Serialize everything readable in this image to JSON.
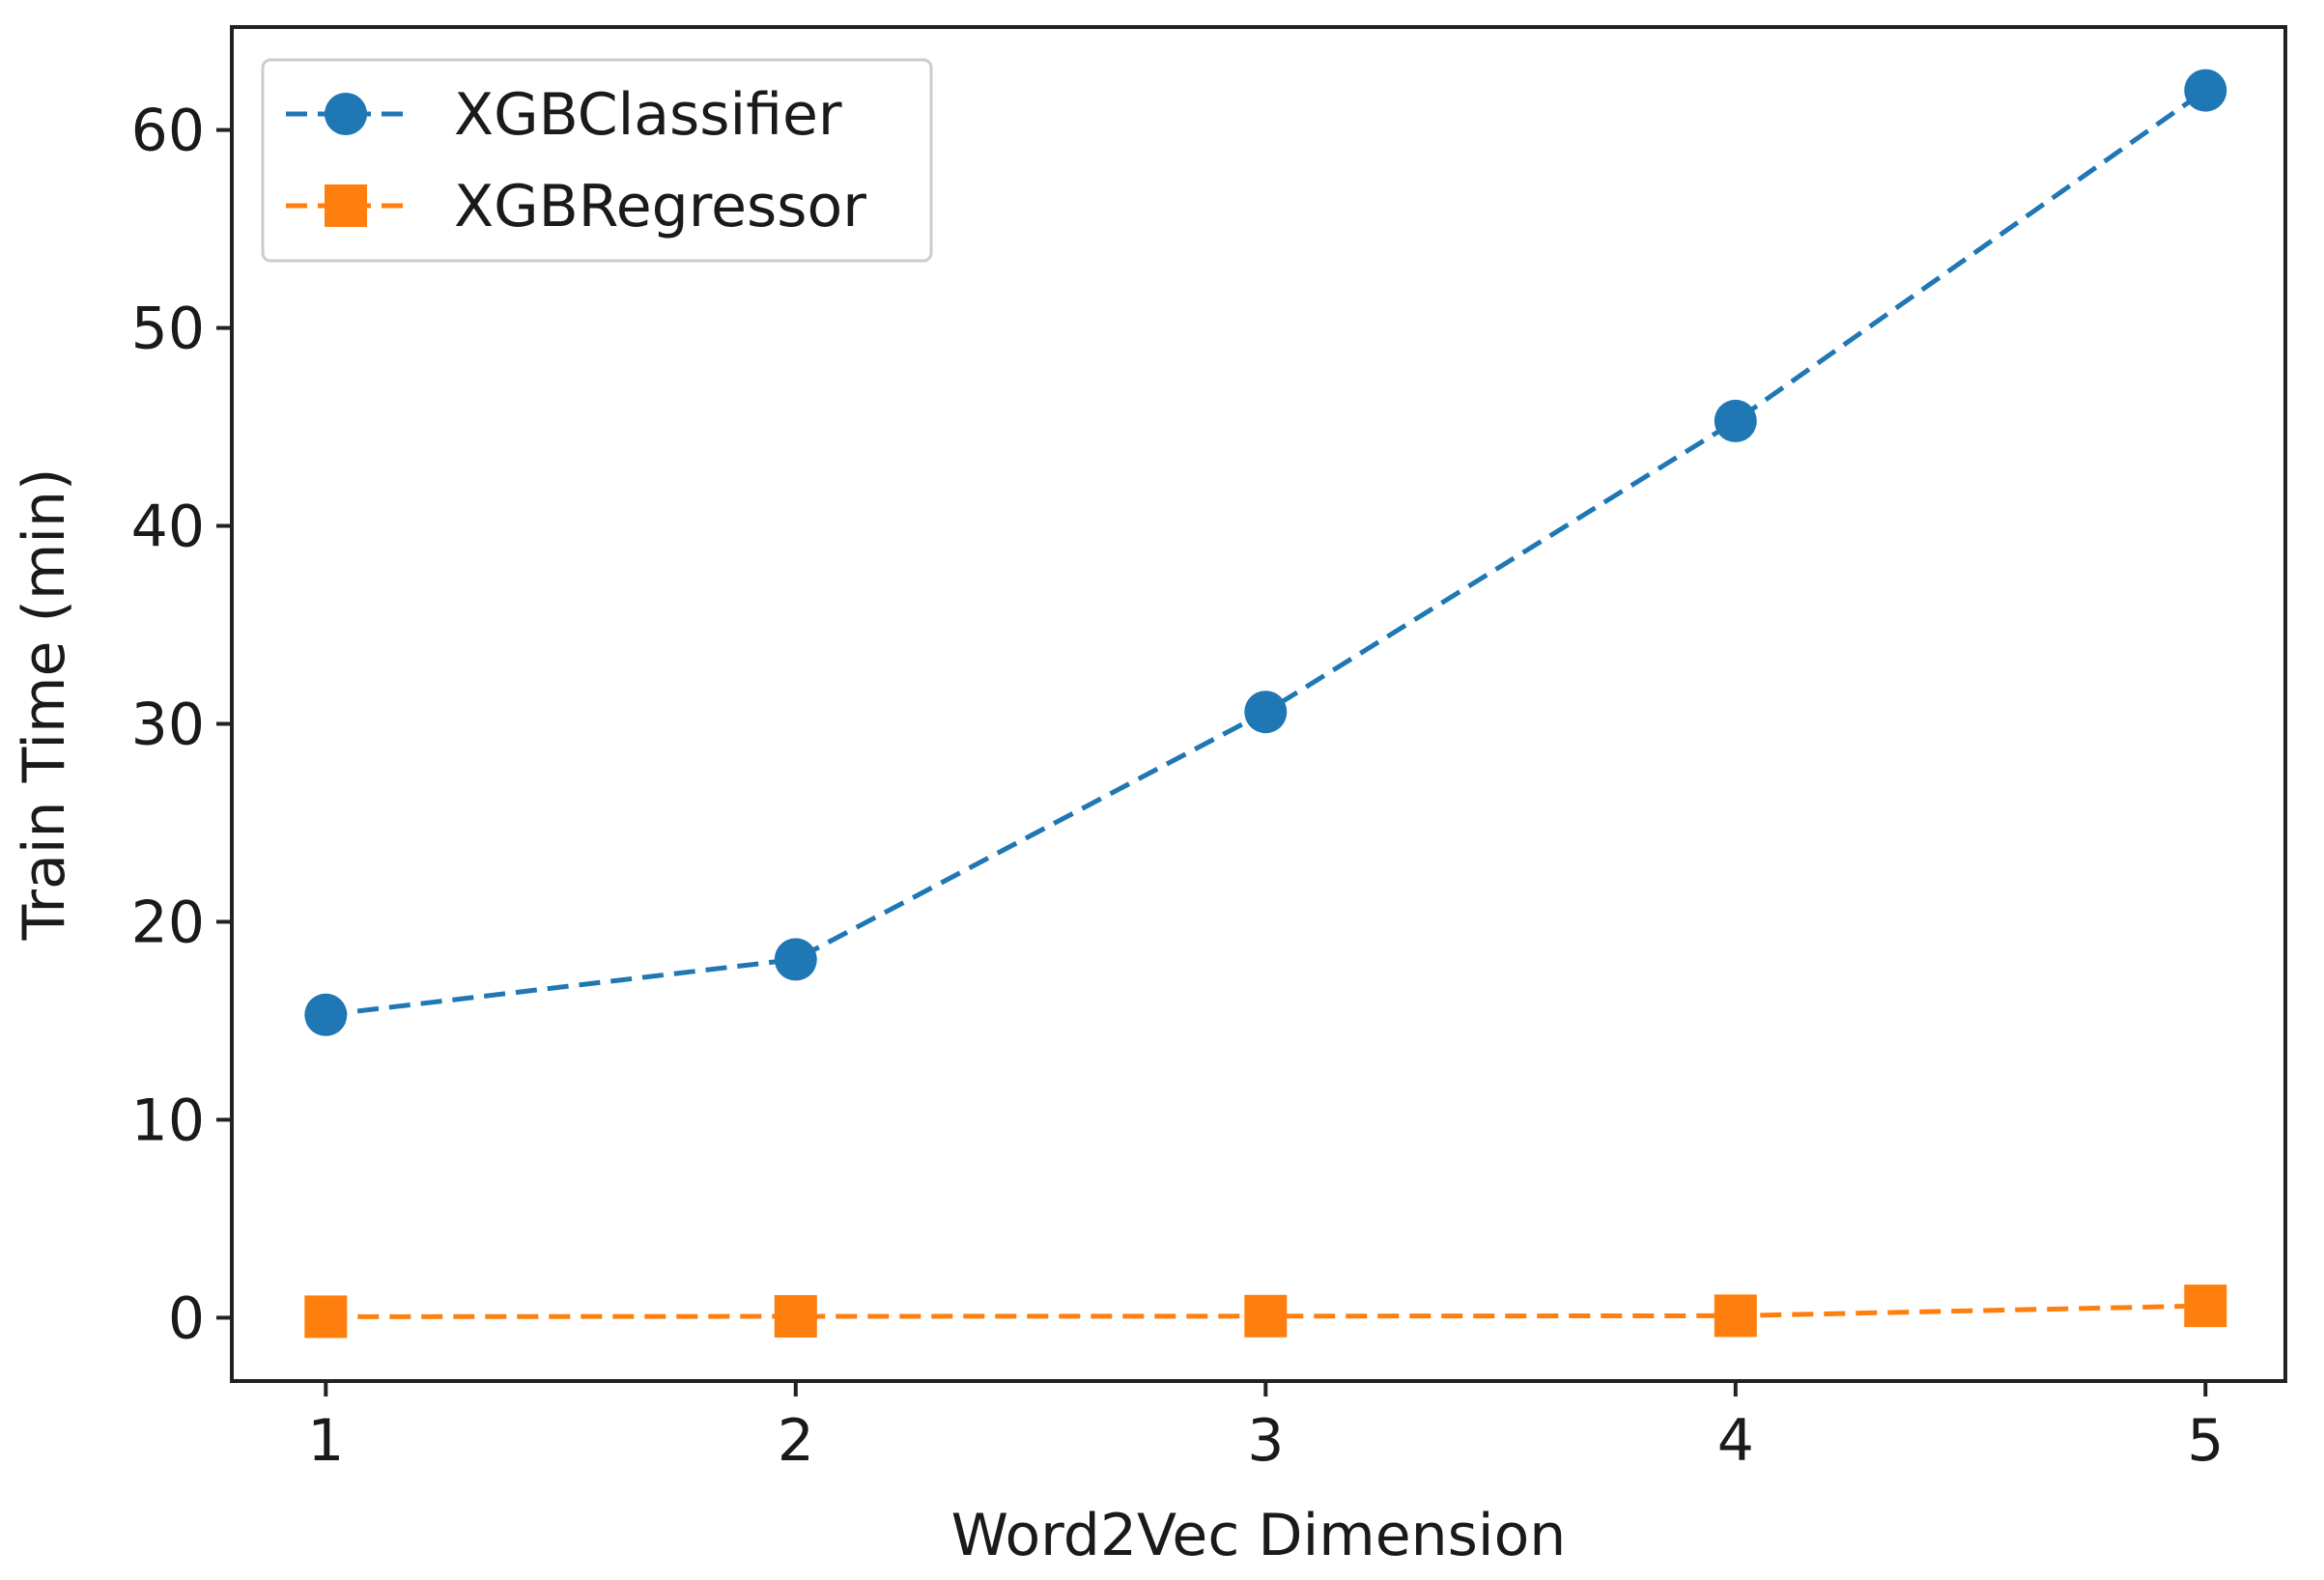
{
  "chart_data": {
    "type": "line",
    "title": "",
    "xlabel": "Word2Vec Dimension",
    "ylabel": "Train Time (min)",
    "x": [
      1,
      2,
      3,
      4,
      5
    ],
    "xlim": [
      0.8,
      5.17
    ],
    "ylim": [
      -3.2,
      65.2
    ],
    "xticks": [
      1,
      2,
      3,
      4,
      5
    ],
    "yticks": [
      0,
      10,
      20,
      30,
      40,
      50,
      60
    ],
    "grid": false,
    "legend_position": "top-left",
    "series": [
      {
        "name": "XGBClassifier",
        "values": [
          15.3,
          18.1,
          30.6,
          45.3,
          62.0
        ],
        "color": "#1f77b4",
        "marker": "circle",
        "line_style": "dashed"
      },
      {
        "name": "XGBRegressor",
        "values": [
          0.05,
          0.07,
          0.08,
          0.1,
          0.6
        ],
        "color": "#ff7f0e",
        "marker": "square",
        "line_style": "dashed"
      }
    ]
  }
}
